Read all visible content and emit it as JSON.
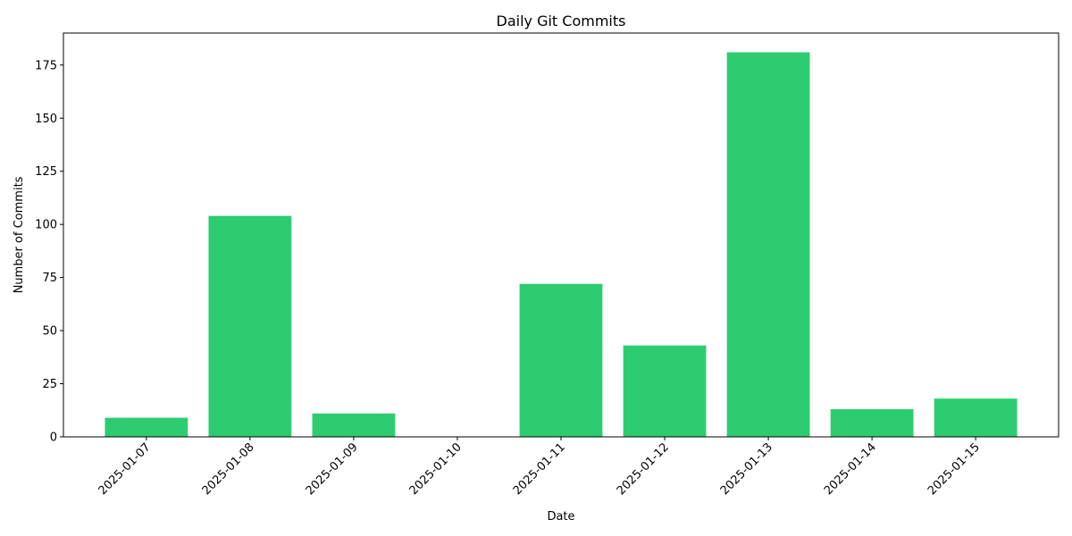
{
  "chart_data": {
    "type": "bar",
    "title": "Daily Git Commits",
    "xlabel": "Date",
    "ylabel": "Number of Commits",
    "categories": [
      "2025-01-07",
      "2025-01-08",
      "2025-01-09",
      "2025-01-10",
      "2025-01-11",
      "2025-01-12",
      "2025-01-13",
      "2025-01-14",
      "2025-01-15"
    ],
    "values": [
      9,
      104,
      11,
      0,
      72,
      43,
      181,
      13,
      18
    ],
    "ylim": [
      0,
      190.05
    ],
    "yticks": [
      0,
      25,
      50,
      75,
      100,
      125,
      150,
      175
    ],
    "bar_color": "#2ecc71",
    "grid": false,
    "xtick_rotation": 45
  }
}
